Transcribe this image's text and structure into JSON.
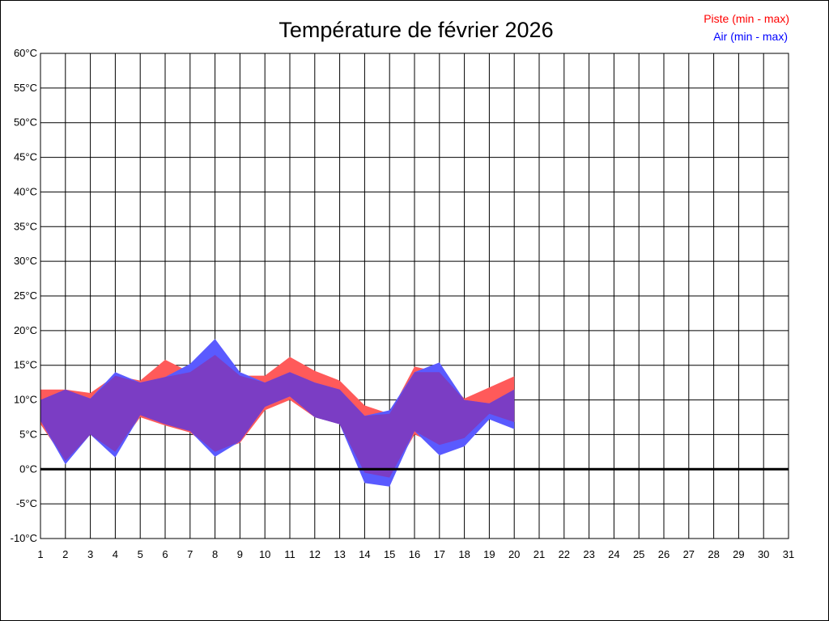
{
  "chart_data": {
    "type": "area",
    "title": "Température de février 2026",
    "legend": [
      {
        "name": "Piste (min - max)",
        "color": "#ff0000"
      },
      {
        "name": "Air (min - max)",
        "color": "#0000ff"
      }
    ],
    "legend_position": "top-right",
    "y_unit_suffix": "°C",
    "ylim": [
      -10,
      60
    ],
    "y_ticks": [
      60,
      55,
      50,
      45,
      40,
      35,
      30,
      25,
      20,
      15,
      10,
      5,
      0,
      -5,
      -10
    ],
    "xlim": [
      1,
      31
    ],
    "x_ticks": [
      1,
      2,
      3,
      4,
      5,
      6,
      7,
      8,
      9,
      10,
      11,
      12,
      13,
      14,
      15,
      16,
      17,
      18,
      19,
      20,
      21,
      22,
      23,
      24,
      25,
      26,
      27,
      28,
      29,
      30,
      31
    ],
    "grid": true,
    "zero_line": true,
    "colors": {
      "piste_fill": "#ff5a5a",
      "air_fill": "#5a5aff",
      "overlap_fill": "#7b3dc4",
      "grid": "#000000"
    },
    "series": [
      {
        "name": "Piste (min - max)",
        "x": [
          1,
          2,
          3,
          4,
          5,
          6,
          7,
          8,
          9,
          10,
          11,
          12,
          13,
          14,
          15,
          16,
          17,
          18,
          19,
          20
        ],
        "min": [
          6.5,
          1.2,
          5.0,
          2.5,
          7.5,
          6.3,
          5.3,
          2.5,
          3.8,
          8.5,
          10.0,
          7.5,
          6.5,
          -0.5,
          -1.2,
          5.0,
          3.5,
          4.5,
          8.0,
          6.8
        ],
        "max": [
          11.5,
          11.5,
          11.0,
          13.5,
          12.8,
          15.8,
          14.0,
          16.5,
          13.5,
          13.5,
          16.2,
          14.2,
          12.8,
          9.2,
          8.0,
          14.8,
          14.0,
          10.2,
          11.8,
          13.4
        ]
      },
      {
        "name": "Air (min - max)",
        "x": [
          1,
          2,
          3,
          4,
          5,
          6,
          7,
          8,
          9,
          10,
          11,
          12,
          13,
          14,
          15,
          16,
          17,
          18,
          19,
          20
        ],
        "min": [
          7.0,
          0.7,
          5.0,
          1.7,
          7.8,
          6.5,
          5.5,
          1.8,
          4.0,
          9.0,
          10.5,
          7.5,
          6.5,
          -2.0,
          -2.5,
          5.5,
          2.0,
          3.3,
          7.2,
          5.8
        ],
        "max": [
          10.0,
          11.5,
          10.2,
          14.0,
          12.5,
          13.3,
          15.2,
          18.8,
          14.0,
          12.5,
          14.0,
          12.5,
          11.5,
          7.7,
          8.5,
          14.0,
          15.4,
          10.0,
          9.5,
          11.5
        ]
      }
    ]
  }
}
